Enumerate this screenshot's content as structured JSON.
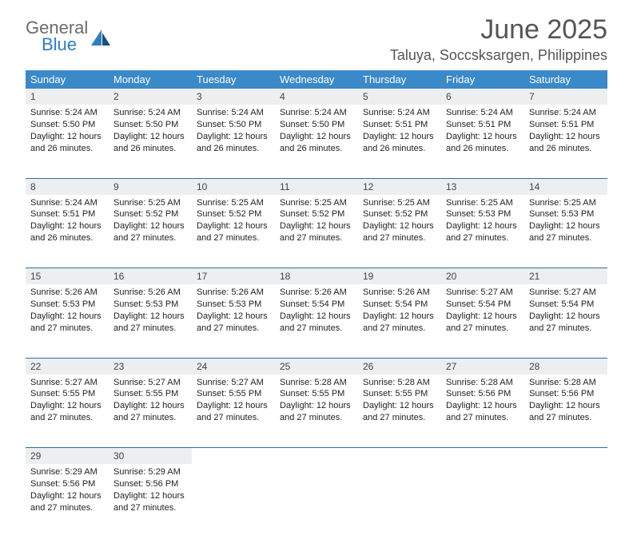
{
  "logo": {
    "general": "General",
    "blue": "Blue"
  },
  "title": "June 2025",
  "location": "Taluya, Soccsksargen, Philippines",
  "colors": {
    "header_bg": "#3a89c9",
    "header_text": "#ffffff",
    "daynum_bg": "#eceeef",
    "rule": "#2f6fa3",
    "text": "#222222",
    "title_text": "#555555"
  },
  "weekdays": [
    "Sunday",
    "Monday",
    "Tuesday",
    "Wednesday",
    "Thursday",
    "Friday",
    "Saturday"
  ],
  "weeks": [
    [
      {
        "n": "1",
        "sr": "5:24 AM",
        "ss": "5:50 PM",
        "dl": "12 hours and 26 minutes."
      },
      {
        "n": "2",
        "sr": "5:24 AM",
        "ss": "5:50 PM",
        "dl": "12 hours and 26 minutes."
      },
      {
        "n": "3",
        "sr": "5:24 AM",
        "ss": "5:50 PM",
        "dl": "12 hours and 26 minutes."
      },
      {
        "n": "4",
        "sr": "5:24 AM",
        "ss": "5:50 PM",
        "dl": "12 hours and 26 minutes."
      },
      {
        "n": "5",
        "sr": "5:24 AM",
        "ss": "5:51 PM",
        "dl": "12 hours and 26 minutes."
      },
      {
        "n": "6",
        "sr": "5:24 AM",
        "ss": "5:51 PM",
        "dl": "12 hours and 26 minutes."
      },
      {
        "n": "7",
        "sr": "5:24 AM",
        "ss": "5:51 PM",
        "dl": "12 hours and 26 minutes."
      }
    ],
    [
      {
        "n": "8",
        "sr": "5:24 AM",
        "ss": "5:51 PM",
        "dl": "12 hours and 26 minutes."
      },
      {
        "n": "9",
        "sr": "5:25 AM",
        "ss": "5:52 PM",
        "dl": "12 hours and 27 minutes."
      },
      {
        "n": "10",
        "sr": "5:25 AM",
        "ss": "5:52 PM",
        "dl": "12 hours and 27 minutes."
      },
      {
        "n": "11",
        "sr": "5:25 AM",
        "ss": "5:52 PM",
        "dl": "12 hours and 27 minutes."
      },
      {
        "n": "12",
        "sr": "5:25 AM",
        "ss": "5:52 PM",
        "dl": "12 hours and 27 minutes."
      },
      {
        "n": "13",
        "sr": "5:25 AM",
        "ss": "5:53 PM",
        "dl": "12 hours and 27 minutes."
      },
      {
        "n": "14",
        "sr": "5:25 AM",
        "ss": "5:53 PM",
        "dl": "12 hours and 27 minutes."
      }
    ],
    [
      {
        "n": "15",
        "sr": "5:26 AM",
        "ss": "5:53 PM",
        "dl": "12 hours and 27 minutes."
      },
      {
        "n": "16",
        "sr": "5:26 AM",
        "ss": "5:53 PM",
        "dl": "12 hours and 27 minutes."
      },
      {
        "n": "17",
        "sr": "5:26 AM",
        "ss": "5:53 PM",
        "dl": "12 hours and 27 minutes."
      },
      {
        "n": "18",
        "sr": "5:26 AM",
        "ss": "5:54 PM",
        "dl": "12 hours and 27 minutes."
      },
      {
        "n": "19",
        "sr": "5:26 AM",
        "ss": "5:54 PM",
        "dl": "12 hours and 27 minutes."
      },
      {
        "n": "20",
        "sr": "5:27 AM",
        "ss": "5:54 PM",
        "dl": "12 hours and 27 minutes."
      },
      {
        "n": "21",
        "sr": "5:27 AM",
        "ss": "5:54 PM",
        "dl": "12 hours and 27 minutes."
      }
    ],
    [
      {
        "n": "22",
        "sr": "5:27 AM",
        "ss": "5:55 PM",
        "dl": "12 hours and 27 minutes."
      },
      {
        "n": "23",
        "sr": "5:27 AM",
        "ss": "5:55 PM",
        "dl": "12 hours and 27 minutes."
      },
      {
        "n": "24",
        "sr": "5:27 AM",
        "ss": "5:55 PM",
        "dl": "12 hours and 27 minutes."
      },
      {
        "n": "25",
        "sr": "5:28 AM",
        "ss": "5:55 PM",
        "dl": "12 hours and 27 minutes."
      },
      {
        "n": "26",
        "sr": "5:28 AM",
        "ss": "5:55 PM",
        "dl": "12 hours and 27 minutes."
      },
      {
        "n": "27",
        "sr": "5:28 AM",
        "ss": "5:56 PM",
        "dl": "12 hours and 27 minutes."
      },
      {
        "n": "28",
        "sr": "5:28 AM",
        "ss": "5:56 PM",
        "dl": "12 hours and 27 minutes."
      }
    ],
    [
      {
        "n": "29",
        "sr": "5:29 AM",
        "ss": "5:56 PM",
        "dl": "12 hours and 27 minutes."
      },
      {
        "n": "30",
        "sr": "5:29 AM",
        "ss": "5:56 PM",
        "dl": "12 hours and 27 minutes."
      },
      null,
      null,
      null,
      null,
      null
    ]
  ],
  "labels": {
    "sunrise": "Sunrise: ",
    "sunset": "Sunset: ",
    "daylight": "Daylight: "
  }
}
